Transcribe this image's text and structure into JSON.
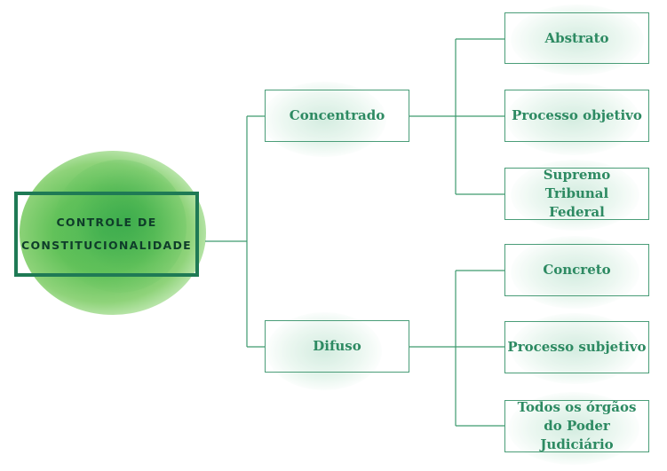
{
  "root": {
    "line1": "CONTROLE DE",
    "line2": "CONSTITUCIONALIDADE"
  },
  "branches": {
    "concentrado": {
      "label": "Concentrado",
      "children": [
        "Abstrato",
        "Processo objetivo",
        "Supremo Tribunal Federal"
      ]
    },
    "difuso": {
      "label": "Difuso",
      "children": [
        "Concreto",
        "Processo subjetivo",
        "Todos os órgãos do Poder Judiciário"
      ]
    }
  },
  "colors": {
    "accent": "#2d8a62",
    "line": "#3e9a6e",
    "root_border": "#1f7a55",
    "root_text": "#0f3d2a"
  }
}
